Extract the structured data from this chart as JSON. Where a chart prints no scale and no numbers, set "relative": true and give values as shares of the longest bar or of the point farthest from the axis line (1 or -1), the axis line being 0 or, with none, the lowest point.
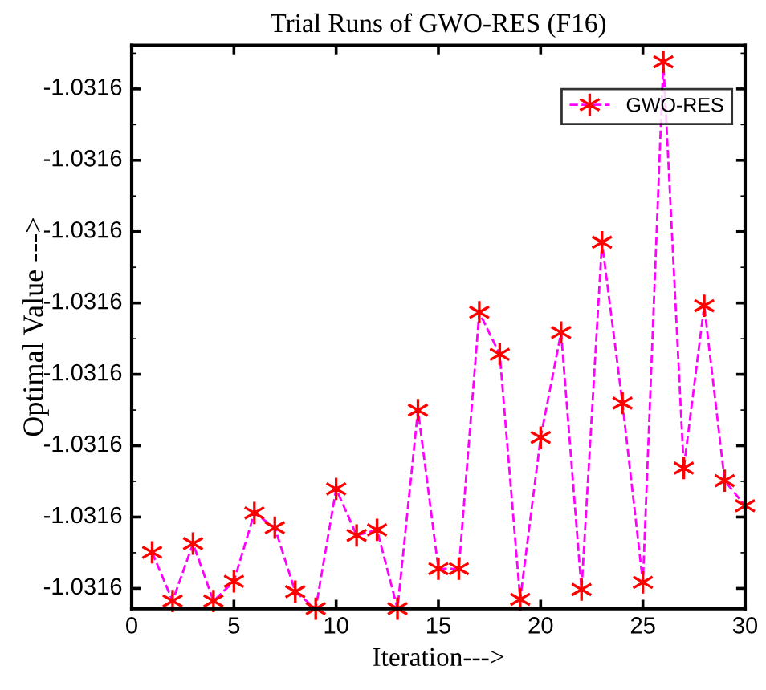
{
  "chart_data": {
    "type": "line",
    "title": "Trial Runs of GWO-RES (F16)",
    "xlabel": "Iteration--->",
    "ylabel": "Optimal Value --->",
    "x": [
      1,
      2,
      3,
      4,
      5,
      6,
      7,
      8,
      9,
      10,
      11,
      12,
      13,
      14,
      15,
      16,
      17,
      18,
      19,
      20,
      21,
      22,
      23,
      24,
      25,
      26,
      27,
      28,
      29,
      30
    ],
    "series": [
      {
        "name": "GWO-RES",
        "color": "#ff00ff",
        "values": [
          0.103,
          0.014,
          0.119,
          0.014,
          0.05,
          0.175,
          0.148,
          0.031,
          0,
          0.219,
          0.134,
          0.144,
          0,
          0.363,
          0.073,
          0.073,
          0.542,
          0.465,
          0.017,
          0.313,
          0.505,
          0.035,
          0.67,
          0.376,
          0.048,
          1,
          0.257,
          0.554,
          0.234,
          0.188
        ]
      }
    ],
    "relative": true,
    "annotations": [
      "-1.0316",
      "-1.0316",
      "-1.0316",
      "-1.0316",
      "-1.0316",
      "-1.0316",
      "-1.0316",
      "-1.0316"
    ],
    "xlim": [
      0,
      30
    ],
    "xticks": [
      0,
      5,
      10,
      15,
      20,
      25,
      30
    ],
    "marker": "cross",
    "line_style": "dashed",
    "legend": "top right",
    "grid": false
  }
}
